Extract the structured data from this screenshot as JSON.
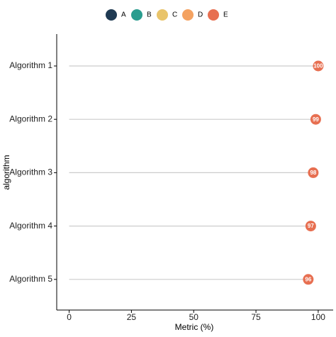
{
  "chart_data": {
    "type": "lollipop",
    "orientation": "horizontal",
    "x_label": "Metric (%)",
    "y_label": "algorithm",
    "categories": [
      "Algorithm 1",
      "Algorithm 2",
      "Algorithm 3",
      "Algorithm 4",
      "Algorithm 5"
    ],
    "series": [
      {
        "name": "A",
        "color": "#1f3a52",
        "values": [
          null,
          null,
          null,
          null,
          null
        ]
      },
      {
        "name": "B",
        "color": "#2a9d8f",
        "values": [
          null,
          null,
          null,
          null,
          null
        ]
      },
      {
        "name": "C",
        "color": "#e9c46a",
        "values": [
          null,
          null,
          null,
          null,
          null
        ]
      },
      {
        "name": "D",
        "color": "#f4a261",
        "values": [
          null,
          null,
          null,
          null,
          null
        ]
      },
      {
        "name": "E",
        "color": "#e76f51",
        "values": [
          100,
          99,
          98,
          97,
          96
        ]
      }
    ],
    "xlim": [
      -5,
      106
    ],
    "xticks": [
      0,
      25,
      50,
      75,
      100
    ],
    "stem_color": "#cccccc",
    "legend": "top"
  }
}
